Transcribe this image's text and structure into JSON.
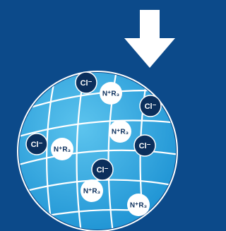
{
  "chloride_ions": [
    "Cl⁻",
    "Cl⁻",
    "Cl⁻",
    "Cl⁻",
    "Cl⁻"
  ],
  "ammonium_groups": [
    "N⁺R₃",
    "N⁺R₃",
    "N⁺R₃",
    "N⁺R₃",
    "N⁺R₃"
  ]
}
